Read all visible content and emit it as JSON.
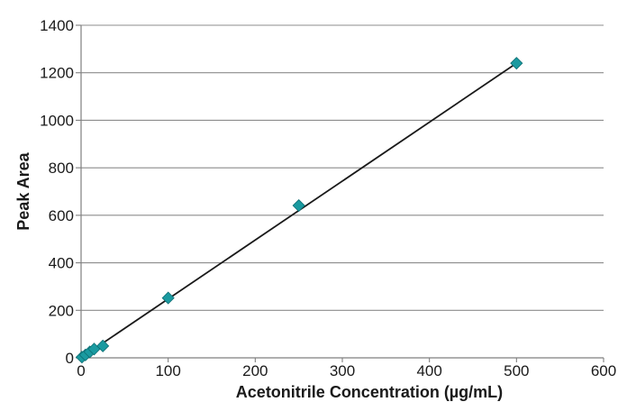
{
  "chart_data": {
    "type": "scatter",
    "title": "",
    "xlabel": "Acetonitrile Concentration (µg/mL)",
    "ylabel": "Peak Area",
    "xlim": [
      0,
      600
    ],
    "ylim": [
      0,
      1400
    ],
    "x_ticks": [
      0,
      100,
      200,
      300,
      400,
      500,
      600
    ],
    "y_ticks": [
      0,
      200,
      400,
      600,
      800,
      1000,
      1200,
      1400
    ],
    "grid": "horizontal",
    "legend": "none",
    "series": [
      {
        "x": [
          1,
          5,
          10,
          15,
          25,
          100,
          250,
          500
        ],
        "y": [
          3,
          12,
          25,
          37,
          50,
          252,
          641,
          1240
        ],
        "marker": "diamond",
        "color": "#1a9aa0"
      }
    ],
    "trendline": {
      "type": "linear",
      "x": [
        0,
        500
      ],
      "y": [
        0,
        1240
      ],
      "color": "#1a1a1a"
    }
  }
}
